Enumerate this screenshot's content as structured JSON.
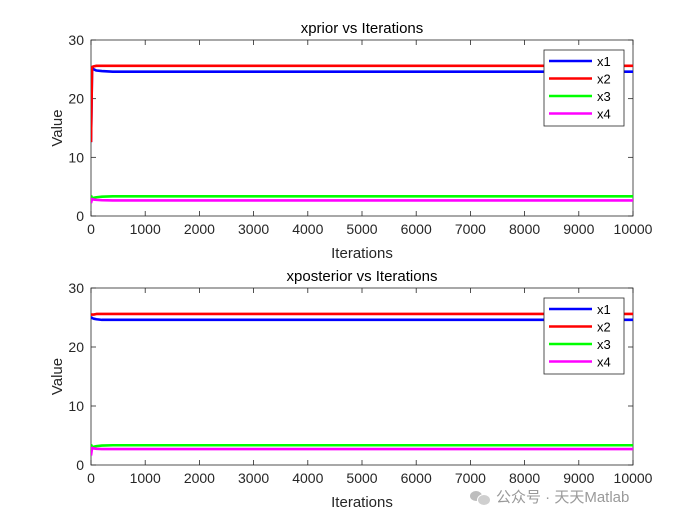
{
  "chart_data": [
    {
      "type": "line",
      "title": "xprior vs Iterations",
      "xlabel": "Iterations",
      "ylabel": "Value",
      "xlim": [
        0,
        10000
      ],
      "ylim": [
        0,
        30
      ],
      "xticks": [
        0,
        1000,
        2000,
        3000,
        4000,
        5000,
        6000,
        7000,
        8000,
        9000,
        10000
      ],
      "yticks": [
        0,
        10,
        20,
        30
      ],
      "grid": false,
      "legend_position": "top-right",
      "series": [
        {
          "name": "x1",
          "color": "#0000ff",
          "x": [
            0,
            20,
            50,
            100,
            200,
            400,
            10000
          ],
          "y": [
            12.6,
            25.3,
            25.0,
            24.8,
            24.7,
            24.6,
            24.6
          ]
        },
        {
          "name": "x2",
          "color": "#ff0000",
          "x": [
            0,
            20,
            50,
            100,
            200,
            400,
            10000
          ],
          "y": [
            12.6,
            25.4,
            25.5,
            25.6,
            25.6,
            25.6,
            25.6
          ]
        },
        {
          "name": "x3",
          "color": "#00ff00",
          "x": [
            0,
            20,
            50,
            100,
            200,
            400,
            10000
          ],
          "y": [
            3.5,
            3.0,
            3.1,
            3.2,
            3.3,
            3.35,
            3.35
          ]
        },
        {
          "name": "x4",
          "color": "#ff00ff",
          "x": [
            0,
            20,
            50,
            100,
            200,
            400,
            10000
          ],
          "y": [
            2.2,
            2.9,
            2.8,
            2.75,
            2.7,
            2.65,
            2.65
          ]
        }
      ]
    },
    {
      "type": "line",
      "title": "xposterior vs Iterations",
      "xlabel": "Iterations",
      "ylabel": "Value",
      "xlim": [
        0,
        10000
      ],
      "ylim": [
        0,
        30
      ],
      "xticks": [
        0,
        1000,
        2000,
        3000,
        4000,
        5000,
        6000,
        7000,
        8000,
        9000,
        10000
      ],
      "yticks": [
        0,
        10,
        20,
        30
      ],
      "grid": false,
      "legend_position": "top-right",
      "series": [
        {
          "name": "x1",
          "color": "#0000ff",
          "x": [
            0,
            20,
            50,
            100,
            200,
            400,
            10000
          ],
          "y": [
            25.1,
            24.9,
            24.8,
            24.7,
            24.6,
            24.6,
            24.6
          ]
        },
        {
          "name": "x2",
          "color": "#ff0000",
          "x": [
            0,
            20,
            50,
            100,
            200,
            400,
            10000
          ],
          "y": [
            25.5,
            25.5,
            25.5,
            25.6,
            25.6,
            25.6,
            25.6
          ]
        },
        {
          "name": "x3",
          "color": "#00ff00",
          "x": [
            0,
            20,
            50,
            100,
            200,
            400,
            10000
          ],
          "y": [
            3.5,
            3.0,
            3.1,
            3.2,
            3.3,
            3.35,
            3.35
          ]
        },
        {
          "name": "x4",
          "color": "#ff00ff",
          "x": [
            0,
            20,
            50,
            100,
            200,
            400,
            10000
          ],
          "y": [
            1.6,
            2.9,
            2.8,
            2.75,
            2.7,
            2.7,
            2.7
          ]
        }
      ]
    }
  ],
  "watermark": {
    "text": "公众号 · 天天Matlab",
    "icon": "wechat-icon"
  }
}
